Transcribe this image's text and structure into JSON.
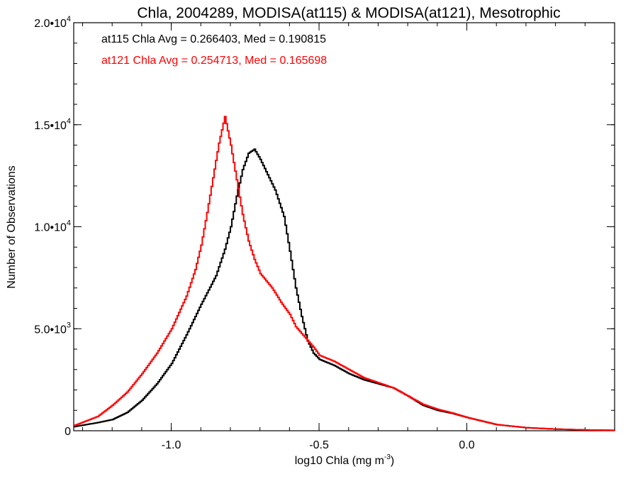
{
  "chart_data": {
    "type": "line",
    "title": "Chla, 2004289, MODISA(at115) & MODISA(at121), Mesotrophic",
    "xlabel": "log10 Chla (mg m",
    "xlabel_exp": "-3",
    "xlabel_close": ")",
    "ylabel": "Number of Observations",
    "xlim": [
      -1.33,
      0.5
    ],
    "ylim": [
      0,
      20000
    ],
    "xticks": [
      {
        "value": -1.0,
        "label": "-1.0"
      },
      {
        "value": -0.5,
        "label": "-0.5"
      },
      {
        "value": 0.0,
        "label": "0.0"
      }
    ],
    "yticks": [
      {
        "value": 0,
        "label": "0",
        "exp": ""
      },
      {
        "value": 5000,
        "label": "5.0•10",
        "exp": "3"
      },
      {
        "value": 10000,
        "label": "1.0•10",
        "exp": "4"
      },
      {
        "value": 15000,
        "label": "1.5•10",
        "exp": "4"
      },
      {
        "value": 20000,
        "label": "2.0•10",
        "exp": "4"
      }
    ],
    "annotations": [
      {
        "text": "at115 Chla Avg = 0.266403, Med = 0.190815",
        "color": "#000000"
      },
      {
        "text": "at121 Chla Avg = 0.254713, Med = 0.165698",
        "color": "#ff0000"
      }
    ],
    "series": [
      {
        "color": "#000000",
        "points": [
          [
            -1.33,
            200
          ],
          [
            -1.25,
            400
          ],
          [
            -1.2,
            550
          ],
          [
            -1.15,
            900
          ],
          [
            -1.1,
            1500
          ],
          [
            -1.05,
            2300
          ],
          [
            -1.0,
            3300
          ],
          [
            -0.95,
            4700
          ],
          [
            -0.9,
            6200
          ],
          [
            -0.85,
            7600
          ],
          [
            -0.82,
            8900
          ],
          [
            -0.8,
            10000
          ],
          [
            -0.78,
            11500
          ],
          [
            -0.76,
            12800
          ],
          [
            -0.74,
            13600
          ],
          [
            -0.72,
            13800
          ],
          [
            -0.7,
            13300
          ],
          [
            -0.68,
            12700
          ],
          [
            -0.65,
            11800
          ],
          [
            -0.62,
            10500
          ],
          [
            -0.6,
            8800
          ],
          [
            -0.58,
            7000
          ],
          [
            -0.56,
            5600
          ],
          [
            -0.54,
            4400
          ],
          [
            -0.52,
            3800
          ],
          [
            -0.5,
            3500
          ],
          [
            -0.45,
            3200
          ],
          [
            -0.4,
            2800
          ],
          [
            -0.35,
            2500
          ],
          [
            -0.3,
            2300
          ],
          [
            -0.25,
            2100
          ],
          [
            -0.2,
            1700
          ],
          [
            -0.15,
            1250
          ],
          [
            -0.1,
            1000
          ],
          [
            -0.05,
            850
          ],
          [
            0.0,
            650
          ],
          [
            0.1,
            300
          ],
          [
            0.2,
            150
          ],
          [
            0.3,
            80
          ],
          [
            0.4,
            40
          ],
          [
            0.5,
            20
          ]
        ]
      },
      {
        "color": "#ff0000",
        "points": [
          [
            -1.33,
            250
          ],
          [
            -1.25,
            700
          ],
          [
            -1.2,
            1250
          ],
          [
            -1.15,
            1900
          ],
          [
            -1.1,
            2800
          ],
          [
            -1.05,
            3800
          ],
          [
            -1.0,
            5000
          ],
          [
            -0.95,
            6600
          ],
          [
            -0.92,
            7900
          ],
          [
            -0.9,
            9100
          ],
          [
            -0.88,
            10700
          ],
          [
            -0.86,
            12400
          ],
          [
            -0.84,
            14100
          ],
          [
            -0.82,
            15400
          ],
          [
            -0.8,
            14000
          ],
          [
            -0.78,
            12300
          ],
          [
            -0.76,
            10600
          ],
          [
            -0.74,
            9300
          ],
          [
            -0.72,
            8400
          ],
          [
            -0.7,
            7700
          ],
          [
            -0.66,
            7000
          ],
          [
            -0.63,
            6300
          ],
          [
            -0.6,
            5700
          ],
          [
            -0.58,
            5100
          ],
          [
            -0.55,
            4600
          ],
          [
            -0.52,
            4100
          ],
          [
            -0.5,
            3700
          ],
          [
            -0.45,
            3400
          ],
          [
            -0.4,
            3000
          ],
          [
            -0.35,
            2600
          ],
          [
            -0.3,
            2350
          ],
          [
            -0.25,
            2100
          ],
          [
            -0.2,
            1700
          ],
          [
            -0.15,
            1300
          ],
          [
            -0.1,
            1050
          ],
          [
            -0.05,
            870
          ],
          [
            0.0,
            650
          ],
          [
            0.1,
            300
          ],
          [
            0.2,
            150
          ],
          [
            0.3,
            80
          ],
          [
            0.4,
            40
          ],
          [
            0.5,
            20
          ]
        ]
      }
    ]
  }
}
